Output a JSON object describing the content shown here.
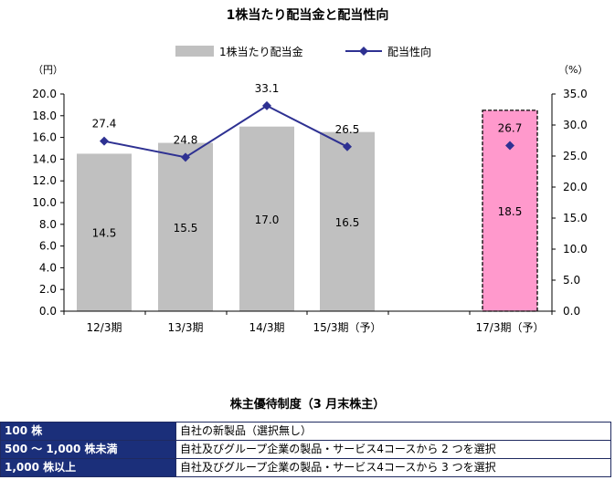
{
  "chart_data": {
    "type": "bar",
    "title": "1株当たり配当金と配当性向",
    "legend": [
      "1株当たり配当金",
      "配当性向"
    ],
    "legend_placement": "top",
    "categories": [
      "12/3期",
      "13/3期",
      "14/3期",
      "15/3期（予）",
      "",
      "17/3期（予）"
    ],
    "left_axis_unit": "（円）",
    "right_axis_unit": "（%）",
    "left_ylim": [
      0,
      20
    ],
    "right_ylim": [
      0,
      35
    ],
    "left_ticks": [
      "0.0",
      "2.0",
      "4.0",
      "6.0",
      "8.0",
      "10.0",
      "12.0",
      "14.0",
      "16.0",
      "18.0",
      "20.0"
    ],
    "right_ticks": [
      "0.0",
      "5.0",
      "10.0",
      "15.0",
      "20.0",
      "25.0",
      "30.0",
      "35.0"
    ],
    "grid": false,
    "series": [
      {
        "name": "1株当たり配当金",
        "kind": "bar",
        "values": [
          14.5,
          15.5,
          17.0,
          16.5,
          null,
          18.5
        ],
        "labels": [
          "14.5",
          "15.5",
          "17.0",
          "16.5",
          "",
          "18.5"
        ],
        "color": "#c0c0c0",
        "highlight_color": "#ff99cc"
      },
      {
        "name": "配当性向",
        "kind": "line",
        "axis": "right",
        "values": [
          27.4,
          24.8,
          33.1,
          26.5,
          null,
          26.7
        ],
        "labels": [
          "27.4",
          "24.8",
          "33.1",
          "26.5",
          "",
          "26.7"
        ],
        "color": "#2e3192"
      }
    ]
  },
  "table": {
    "title": "株主優待制度（3 月末株主）",
    "rows": [
      {
        "condition": "100 株",
        "benefit": "自社の新製品（選択無し）"
      },
      {
        "condition": "500 〜 1,000 株未満",
        "benefit": "自社及びグループ企業の製品・サービス4コースから 2 つを選択"
      },
      {
        "condition": "1,000 株以上",
        "benefit": "自社及びグループ企業の製品・サービス4コースから 3 つを選択"
      }
    ]
  }
}
